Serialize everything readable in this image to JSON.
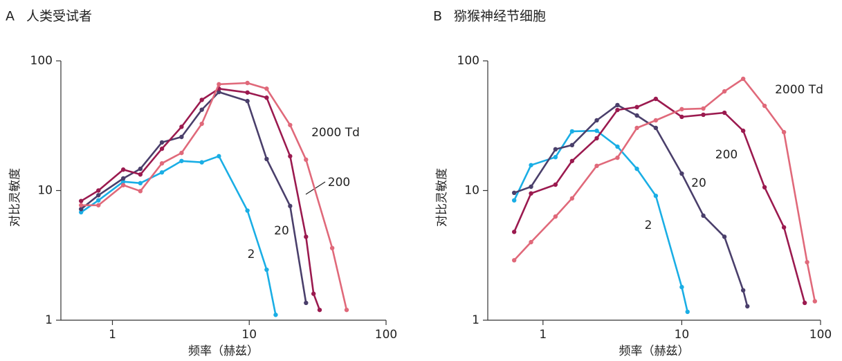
{
  "chart_data": [
    {
      "type": "line",
      "panel": "A",
      "title": "人类受试者",
      "x_label": "频率（赫兹）",
      "y_label": "对比灵敏度",
      "log_x": true,
      "log_y": true,
      "xlim": [
        0.42,
        100
      ],
      "ylim": [
        1,
        100
      ],
      "xticks": [
        1,
        10,
        100
      ],
      "yticks": [
        1,
        10,
        100
      ],
      "series": [
        {
          "name": "2",
          "color": "#1aaee5",
          "x": [
            0.59,
            0.79,
            1.2,
            1.6,
            2.3,
            3.2,
            4.5,
            6.0,
            9.7,
            13.4,
            15.6
          ],
          "values": [
            6.8,
            8.4,
            11.7,
            11.4,
            13.8,
            16.9,
            16.5,
            18.4,
            7.0,
            2.45,
            1.1
          ]
        },
        {
          "name": "20",
          "color": "#4a3f6b",
          "x": [
            0.59,
            0.79,
            1.2,
            1.6,
            2.3,
            3.2,
            4.5,
            6.0,
            9.7,
            13.4,
            19.9,
            26
          ],
          "values": [
            7.2,
            9.2,
            12.4,
            14.7,
            23.5,
            25.9,
            42,
            57.5,
            49,
            17.5,
            7.6,
            1.36
          ]
        },
        {
          "name": "200",
          "color": "#9b1a4f",
          "x": [
            0.59,
            0.79,
            1.2,
            1.6,
            2.3,
            3.2,
            4.5,
            6.0,
            9.7,
            13.4,
            19.9,
            26,
            29.5,
            32.7
          ],
          "values": [
            8.3,
            10,
            14.5,
            13.3,
            21,
            31,
            50,
            61,
            57,
            52,
            18.4,
            4.4,
            1.6,
            1.2
          ]
        },
        {
          "name": "2000 Td",
          "color": "#e0697a",
          "x": [
            0.59,
            0.79,
            1.2,
            1.6,
            2.3,
            3.2,
            4.5,
            6.0,
            9.7,
            13.4,
            19.9,
            26,
            40.4,
            51.5
          ],
          "values": [
            7.7,
            7.7,
            11,
            9.9,
            16.2,
            19.5,
            32.7,
            66,
            67.5,
            61,
            32,
            17.3,
            3.6,
            1.2
          ]
        }
      ]
    },
    {
      "type": "line",
      "panel": "B",
      "title": "猕猴神经节细胞",
      "x_label": "频率（赫兹）",
      "y_label": "对比灵敏度",
      "log_x": true,
      "log_y": true,
      "xlim": [
        0.4,
        100
      ],
      "ylim": [
        1,
        100
      ],
      "xticks": [
        1,
        10,
        100
      ],
      "yticks": [
        1,
        10,
        100
      ],
      "series": [
        {
          "name": "2",
          "color": "#1aaee5",
          "x": [
            0.62,
            0.82,
            1.23,
            1.62,
            2.44,
            3.44,
            4.75,
            6.5,
            10,
            11
          ],
          "values": [
            8.4,
            15.7,
            18.1,
            28.6,
            28.9,
            21.8,
            14.7,
            9.1,
            1.8,
            1.16
          ]
        },
        {
          "name": "20",
          "color": "#4a3f6b",
          "x": [
            0.62,
            0.82,
            1.23,
            1.62,
            2.44,
            3.44,
            4.75,
            6.5,
            10,
            14.3,
            20.3,
            27.7,
            29.7
          ],
          "values": [
            9.6,
            10.7,
            20.8,
            22.4,
            34.8,
            45.6,
            37.9,
            30.4,
            13.5,
            6.4,
            4.4,
            1.7,
            1.28
          ]
        },
        {
          "name": "200",
          "color": "#9b1a4f",
          "x": [
            0.62,
            0.82,
            1.23,
            1.62,
            2.44,
            3.44,
            4.75,
            6.5,
            10,
            14.3,
            20.3,
            27.7,
            39.5,
            54.5,
            76.9
          ],
          "values": [
            4.8,
            9.5,
            11.1,
            16.9,
            25.3,
            41.8,
            44,
            50.9,
            37,
            38.4,
            39.8,
            28.9,
            10.6,
            5.2,
            1.36
          ]
        },
        {
          "name": "2000 Td",
          "color": "#e0697a",
          "x": [
            0.62,
            0.82,
            1.23,
            1.62,
            2.44,
            3.44,
            4.75,
            6.5,
            10,
            14.3,
            20.3,
            27.7,
            39.5,
            54.5,
            80,
            91
          ],
          "values": [
            2.9,
            4.0,
            6.3,
            8.7,
            15.5,
            17.9,
            30.4,
            34.8,
            42.4,
            42.9,
            58.2,
            72.7,
            45,
            28.2,
            2.8,
            1.4
          ]
        }
      ]
    }
  ]
}
